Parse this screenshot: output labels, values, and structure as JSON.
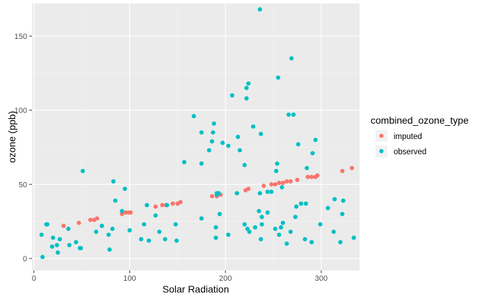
{
  "chart_data": {
    "type": "scatter",
    "title": "",
    "xlabel": "Solar Radiation",
    "ylabel": "ozone  (ppb)",
    "xlim": [
      -2,
      340
    ],
    "ylim": [
      -8,
      172
    ],
    "xticks": [
      0,
      100,
      200,
      300
    ],
    "yticks": [
      0,
      50,
      100,
      150
    ],
    "grid": true,
    "legend": {
      "title": "combined_ozone_type",
      "position": "right"
    },
    "series": [
      {
        "name": "imputed",
        "color": "#F8766D",
        "points": [
          [
            31,
            22
          ],
          [
            47,
            24
          ],
          [
            59,
            26
          ],
          [
            63,
            26
          ],
          [
            66,
            27
          ],
          [
            92,
            30
          ],
          [
            96,
            31
          ],
          [
            99,
            31
          ],
          [
            101,
            31
          ],
          [
            127,
            35
          ],
          [
            134,
            36
          ],
          [
            138,
            36
          ],
          [
            145,
            37
          ],
          [
            150,
            37
          ],
          [
            153,
            38
          ],
          [
            186,
            42
          ],
          [
            191,
            42
          ],
          [
            195,
            43
          ],
          [
            221,
            46
          ],
          [
            224,
            47
          ],
          [
            240,
            49
          ],
          [
            248,
            50
          ],
          [
            252,
            50
          ],
          [
            256,
            51
          ],
          [
            260,
            51
          ],
          [
            264,
            52
          ],
          [
            268,
            52
          ],
          [
            275,
            53
          ],
          [
            286,
            55
          ],
          [
            290,
            55
          ],
          [
            294,
            55
          ],
          [
            296,
            56
          ],
          [
            322,
            59
          ],
          [
            332,
            61
          ]
        ]
      },
      {
        "name": "observed",
        "color": "#00BFC4",
        "points": [
          [
            8,
            16
          ],
          [
            9,
            1
          ],
          [
            13,
            23
          ],
          [
            14,
            23
          ],
          [
            19,
            8
          ],
          [
            20,
            14
          ],
          [
            24,
            9
          ],
          [
            25,
            4
          ],
          [
            27,
            13
          ],
          [
            37,
            9
          ],
          [
            36,
            20
          ],
          [
            44,
            11
          ],
          [
            48,
            7
          ],
          [
            49,
            7
          ],
          [
            51,
            59
          ],
          [
            65,
            18
          ],
          [
            71,
            22
          ],
          [
            78,
            16
          ],
          [
            79,
            6
          ],
          [
            82,
            20
          ],
          [
            83,
            52
          ],
          [
            85,
            39
          ],
          [
            92,
            32
          ],
          [
            95,
            47
          ],
          [
            100,
            19
          ],
          [
            112,
            13
          ],
          [
            115,
            23
          ],
          [
            118,
            36
          ],
          [
            120,
            12
          ],
          [
            127,
            29
          ],
          [
            131,
            18
          ],
          [
            137,
            13
          ],
          [
            139,
            36
          ],
          [
            148,
            23
          ],
          [
            149,
            12
          ],
          [
            157,
            65
          ],
          [
            167,
            96
          ],
          [
            175,
            27
          ],
          [
            175,
            64
          ],
          [
            175,
            85
          ],
          [
            183,
            73
          ],
          [
            186,
            79
          ],
          [
            187,
            85
          ],
          [
            188,
            91
          ],
          [
            190,
            14
          ],
          [
            190,
            21
          ],
          [
            191,
            44
          ],
          [
            191,
            43
          ],
          [
            193,
            44
          ],
          [
            194,
            30
          ],
          [
            197,
            78
          ],
          [
            203,
            16
          ],
          [
            203,
            76
          ],
          [
            207,
            110
          ],
          [
            212,
            44
          ],
          [
            213,
            82
          ],
          [
            215,
            73
          ],
          [
            220,
            23
          ],
          [
            220,
            63
          ],
          [
            222,
            108
          ],
          [
            222,
            115
          ],
          [
            223,
            20
          ],
          [
            224,
            118
          ],
          [
            225,
            18
          ],
          [
            229,
            89
          ],
          [
            231,
            21
          ],
          [
            235,
            32
          ],
          [
            236,
            44
          ],
          [
            236,
            168
          ],
          [
            237,
            84
          ],
          [
            237,
            13
          ],
          [
            238,
            23
          ],
          [
            238,
            28
          ],
          [
            244,
            31
          ],
          [
            244,
            45
          ],
          [
            248,
            45
          ],
          [
            252,
            20
          ],
          [
            253,
            59
          ],
          [
            254,
            64
          ],
          [
            255,
            122
          ],
          [
            256,
            16
          ],
          [
            258,
            21
          ],
          [
            259,
            48
          ],
          [
            260,
            24
          ],
          [
            264,
            10
          ],
          [
            266,
            97
          ],
          [
            268,
            18
          ],
          [
            269,
            135
          ],
          [
            271,
            97
          ],
          [
            273,
            28
          ],
          [
            274,
            35
          ],
          [
            276,
            77
          ],
          [
            279,
            37
          ],
          [
            283,
            13
          ],
          [
            284,
            37
          ],
          [
            285,
            61
          ],
          [
            290,
            11
          ],
          [
            291,
            71
          ],
          [
            294,
            80
          ],
          [
            299,
            23
          ],
          [
            307,
            34
          ],
          [
            313,
            18
          ],
          [
            314,
            40
          ],
          [
            320,
            11
          ],
          [
            322,
            30
          ],
          [
            323,
            39
          ],
          [
            334,
            14
          ]
        ]
      }
    ]
  }
}
